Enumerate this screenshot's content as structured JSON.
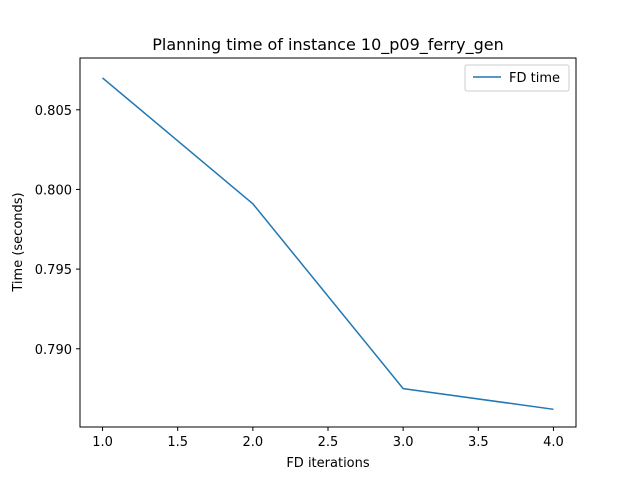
{
  "chart_data": {
    "type": "line",
    "title": "Planning time of instance 10_p09_ferry_gen",
    "xlabel": "FD iterations",
    "ylabel": "Time (seconds)",
    "x": [
      1.0,
      2.0,
      3.0,
      4.0
    ],
    "series": [
      {
        "name": "FD time",
        "values": [
          0.807,
          0.7991,
          0.7875,
          0.7862
        ],
        "color": "#1f77b4"
      }
    ],
    "xlim": [
      0.85,
      4.15
    ],
    "ylim": [
      0.78509,
      0.80825
    ],
    "xticks": [
      "1.0",
      "1.5",
      "2.0",
      "2.5",
      "3.0",
      "3.5",
      "4.0"
    ],
    "yticks": [
      "0.790",
      "0.795",
      "0.800",
      "0.805"
    ],
    "grid": false,
    "legend": "top-right"
  }
}
